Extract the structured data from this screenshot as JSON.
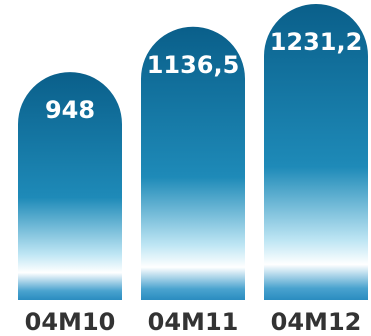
{
  "chart_data": {
    "type": "bar",
    "categories": [
      "04M10",
      "04M11",
      "04M12"
    ],
    "values": [
      948,
      1136.5,
      1231.2
    ],
    "value_labels": [
      "948",
      "1136,5",
      "1231,2"
    ],
    "title": "",
    "xlabel": "",
    "ylabel": "",
    "ylim": [
      0,
      1231.2
    ],
    "grid": false,
    "legend": "none"
  },
  "colors": {
    "bar_top": "#0a5f8a",
    "bar_mid": "#1e8ab8",
    "bar_highlight": "#ffffff",
    "value_text": "#ffffff",
    "tick_text": "#333333"
  }
}
